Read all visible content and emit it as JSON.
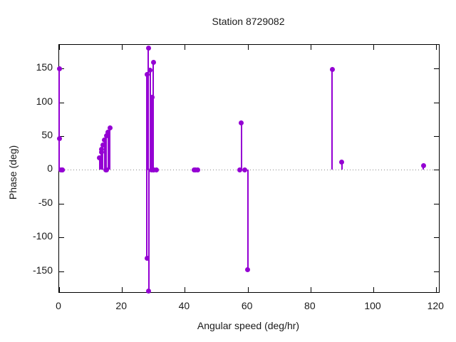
{
  "figure": {
    "background": "#ffffff"
  },
  "chart_data": {
    "type": "scatter",
    "style": "stem-impulses-with-points",
    "title": "Station 8729082",
    "xlabel": "Angular speed (deg/hr)",
    "ylabel": "Phase (deg)",
    "xlim": [
      0,
      120.85
    ],
    "ylim": [
      -181,
      185
    ],
    "x_ticks": [
      0,
      20,
      40,
      60,
      80,
      100,
      120
    ],
    "y_ticks": [
      -150,
      -100,
      -50,
      0,
      50,
      100,
      150
    ],
    "grid": false,
    "zero_line_dotted": true,
    "legend_position": "none",
    "accent_color": "#9400d3",
    "series": [
      {
        "name": "phase",
        "color": "#9400d3",
        "marker": "filled-circle",
        "points": [
          [
            0.04,
            150
          ],
          [
            0.08,
            46
          ],
          [
            0.54,
            0
          ],
          [
            1.02,
            0
          ],
          [
            1.1,
            0
          ],
          [
            12.85,
            18
          ],
          [
            13.4,
            26
          ],
          [
            13.47,
            31
          ],
          [
            13.94,
            37
          ],
          [
            14.5,
            44
          ],
          [
            14.96,
            0
          ],
          [
            15.0,
            0
          ],
          [
            15.04,
            50
          ],
          [
            15.59,
            56
          ],
          [
            16.14,
            62
          ],
          [
            27.9,
            141
          ],
          [
            27.97,
            -131
          ],
          [
            28.44,
            180
          ],
          [
            28.51,
            -179
          ],
          [
            28.98,
            148
          ],
          [
            29.46,
            0
          ],
          [
            29.53,
            108
          ],
          [
            29.96,
            159
          ],
          [
            30.0,
            0
          ],
          [
            30.04,
            0
          ],
          [
            30.08,
            0
          ],
          [
            31.02,
            0
          ],
          [
            42.93,
            0
          ],
          [
            43.48,
            0
          ],
          [
            44.03,
            0
          ],
          [
            57.42,
            0
          ],
          [
            57.97,
            70
          ],
          [
            58.98,
            0
          ],
          [
            60.0,
            -148
          ],
          [
            86.95,
            149
          ],
          [
            90.0,
            12
          ],
          [
            115.94,
            6
          ]
        ]
      }
    ]
  }
}
